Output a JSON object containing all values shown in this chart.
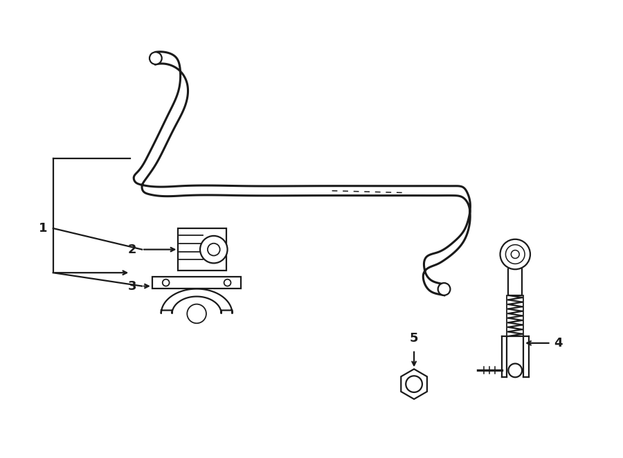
{
  "bg_color": "#ffffff",
  "line_color": "#1a1a1a",
  "lw": 1.6,
  "lw_thick": 2.2,
  "fs": 13,
  "figsize": [
    9.0,
    6.62
  ],
  "dpi": 100
}
